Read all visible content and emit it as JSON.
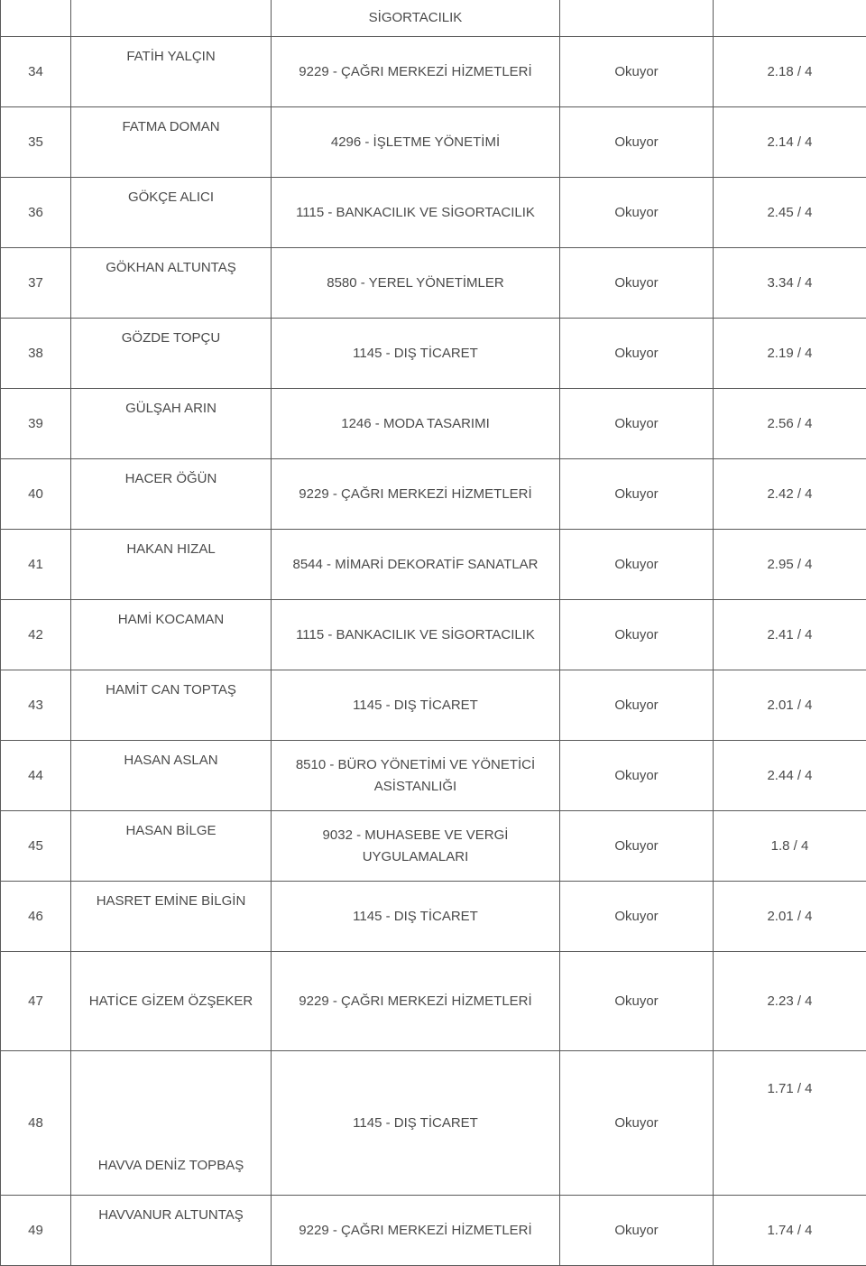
{
  "table": {
    "top_fragment": {
      "num": "",
      "name": "",
      "prog": "SİGORTACILIK",
      "stat": "",
      "grade": ""
    },
    "rows": [
      {
        "num": "34",
        "name": "FATİH YALÇIN",
        "prog": "9229 - ÇAĞRI MERKEZİ HİZMETLERİ",
        "stat": "Okuyor",
        "grade": "2.18 / 4",
        "nameTop": true
      },
      {
        "num": "35",
        "name": "FATMA DOMAN",
        "prog": "4296 - İŞLETME YÖNETİMİ",
        "stat": "Okuyor",
        "grade": "2.14 / 4",
        "nameTop": true
      },
      {
        "num": "36",
        "name": "GÖKÇE ALICI",
        "prog": "1115 - BANKACILIK VE SİGORTACILIK",
        "stat": "Okuyor",
        "grade": "2.45 / 4",
        "nameTop": true
      },
      {
        "num": "37",
        "name": "GÖKHAN ALTUNTAŞ",
        "prog": "8580 - YEREL YÖNETİMLER",
        "stat": "Okuyor",
        "grade": "3.34 / 4",
        "nameTop": true
      },
      {
        "num": "38",
        "name": "GÖZDE TOPÇU",
        "prog": "1145 - DIŞ TİCARET",
        "stat": "Okuyor",
        "grade": "2.19 / 4",
        "nameTop": true
      },
      {
        "num": "39",
        "name": "GÜLŞAH ARIN",
        "prog": "1246 - MODA TASARIMI",
        "stat": "Okuyor",
        "grade": "2.56 / 4",
        "nameTop": true
      },
      {
        "num": "40",
        "name": "HACER ÖĞÜN",
        "prog": "9229 - ÇAĞRI MERKEZİ HİZMETLERİ",
        "stat": "Okuyor",
        "grade": "2.42 / 4",
        "nameTop": true
      },
      {
        "num": "41",
        "name": "HAKAN HIZAL",
        "prog": "8544 - MİMARİ DEKORATİF SANATLAR",
        "stat": "Okuyor",
        "grade": "2.95 / 4",
        "nameTop": true
      },
      {
        "num": "42",
        "name": "HAMİ KOCAMAN",
        "prog": "1115 - BANKACILIK VE SİGORTACILIK",
        "stat": "Okuyor",
        "grade": "2.41 / 4",
        "nameTop": true
      },
      {
        "num": "43",
        "name": "HAMİT CAN TOPTAŞ",
        "prog": "1145 - DIŞ TİCARET",
        "stat": "Okuyor",
        "grade": "2.01 / 4",
        "nameTop": true
      },
      {
        "num": "44",
        "name": "HASAN ASLAN",
        "prog": "8510 - BÜRO YÖNETİMİ VE YÖNETİCİ ASİSTANLIĞI",
        "stat": "Okuyor",
        "grade": "2.44 / 4",
        "nameTop": true
      },
      {
        "num": "45",
        "name": "HASAN BİLGE",
        "prog": "9032 - MUHASEBE VE VERGİ UYGULAMALARI",
        "stat": "Okuyor",
        "grade": "1.8 / 4",
        "nameTop": true
      },
      {
        "num": "46",
        "name": "HASRET EMİNE BİLGİN",
        "prog": "1145 - DIŞ TİCARET",
        "stat": "Okuyor",
        "grade": "2.01 / 4",
        "nameTop": true
      },
      {
        "num": "47",
        "name": "HATİCE GİZEM ÖZŞEKER",
        "prog": "9229 - ÇAĞRI MERKEZİ HİZMETLERİ",
        "stat": "Okuyor",
        "grade": "2.23 / 4",
        "rowClass": "row-hatice"
      },
      {
        "num": "48",
        "name": "HAVVA DENİZ TOPBAŞ",
        "prog": "1145 - DIŞ TİCARET",
        "stat": "Okuyor",
        "grade": "1.71 / 4",
        "tall": true
      },
      {
        "num": "49",
        "name": "HAVVANUR ALTUNTAŞ",
        "prog": "9229 - ÇAĞRI MERKEZİ HİZMETLERİ",
        "stat": "Okuyor",
        "grade": "1.74 / 4",
        "nameTop": true
      }
    ],
    "columns": {
      "num_width": 78,
      "name_width": 222,
      "prog_width": 320,
      "stat_width": 170,
      "grade_width": 170
    },
    "colors": {
      "border": "#5a5a5a",
      "text": "#4a4a4a",
      "background": "#ffffff"
    },
    "font_size": 15
  }
}
